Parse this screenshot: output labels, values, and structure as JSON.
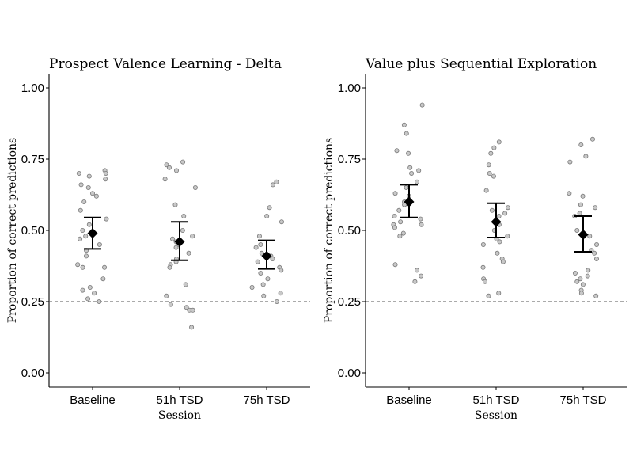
{
  "chart_data": [
    {
      "type": "scatter",
      "title": "Prospect Valence Learning - Delta",
      "xlabel": "Session",
      "ylabel": "Proportion of correct predictions",
      "categories": [
        "Baseline",
        "51h TSD",
        "75h TSD"
      ],
      "ylim": [
        -0.05,
        1.05
      ],
      "yticks": [
        0.0,
        0.25,
        0.5,
        0.75,
        1.0
      ],
      "ytick_labels": [
        "0.00",
        "0.25",
        "0.50",
        "0.75",
        "1.00"
      ],
      "reference_line": 0.25,
      "grid": false,
      "points": [
        [
          0.71,
          0.7,
          0.7,
          0.69,
          0.68,
          0.66,
          0.65,
          0.63,
          0.62,
          0.6,
          0.57,
          0.54,
          0.52,
          0.5,
          0.49,
          0.48,
          0.47,
          0.45,
          0.43,
          0.41,
          0.38,
          0.37,
          0.37,
          0.33,
          0.3,
          0.29,
          0.28,
          0.26,
          0.25
        ],
        [
          0.74,
          0.73,
          0.72,
          0.71,
          0.68,
          0.65,
          0.59,
          0.55,
          0.5,
          0.48,
          0.47,
          0.46,
          0.45,
          0.44,
          0.42,
          0.4,
          0.39,
          0.38,
          0.37,
          0.31,
          0.27,
          0.24,
          0.23,
          0.22,
          0.22,
          0.16
        ],
        [
          0.67,
          0.66,
          0.58,
          0.55,
          0.53,
          0.48,
          0.45,
          0.44,
          0.42,
          0.41,
          0.4,
          0.39,
          0.37,
          0.36,
          0.35,
          0.33,
          0.31,
          0.3,
          0.28,
          0.27,
          0.25
        ]
      ],
      "means": [
        0.49,
        0.46,
        0.41
      ],
      "ci_low": [
        0.435,
        0.395,
        0.365
      ],
      "ci_high": [
        0.545,
        0.53,
        0.465
      ]
    },
    {
      "type": "scatter",
      "title": "Value plus Sequential Exploration",
      "xlabel": "Session",
      "ylabel": "Proportion of correct predictions",
      "categories": [
        "Baseline",
        "51h TSD",
        "75h TSD"
      ],
      "ylim": [
        -0.05,
        1.05
      ],
      "yticks": [
        0.0,
        0.25,
        0.5,
        0.75,
        1.0
      ],
      "ytick_labels": [
        "0.00",
        "0.25",
        "0.50",
        "0.75",
        "1.00"
      ],
      "reference_line": 0.25,
      "grid": false,
      "points": [
        [
          0.94,
          0.87,
          0.84,
          0.78,
          0.77,
          0.72,
          0.71,
          0.7,
          0.67,
          0.65,
          0.63,
          0.62,
          0.6,
          0.59,
          0.57,
          0.55,
          0.54,
          0.53,
          0.52,
          0.52,
          0.51,
          0.49,
          0.48,
          0.38,
          0.36,
          0.34,
          0.32
        ],
        [
          0.81,
          0.79,
          0.77,
          0.73,
          0.7,
          0.69,
          0.64,
          0.58,
          0.57,
          0.56,
          0.55,
          0.52,
          0.5,
          0.48,
          0.47,
          0.46,
          0.45,
          0.42,
          0.4,
          0.39,
          0.37,
          0.33,
          0.32,
          0.28,
          0.27
        ],
        [
          0.82,
          0.8,
          0.76,
          0.74,
          0.63,
          0.62,
          0.59,
          0.58,
          0.56,
          0.55,
          0.5,
          0.48,
          0.45,
          0.43,
          0.42,
          0.4,
          0.36,
          0.35,
          0.34,
          0.33,
          0.32,
          0.31,
          0.29,
          0.28,
          0.27
        ]
      ],
      "means": [
        0.6,
        0.53,
        0.485
      ],
      "ci_low": [
        0.545,
        0.475,
        0.425
      ],
      "ci_high": [
        0.66,
        0.595,
        0.55
      ]
    }
  ]
}
